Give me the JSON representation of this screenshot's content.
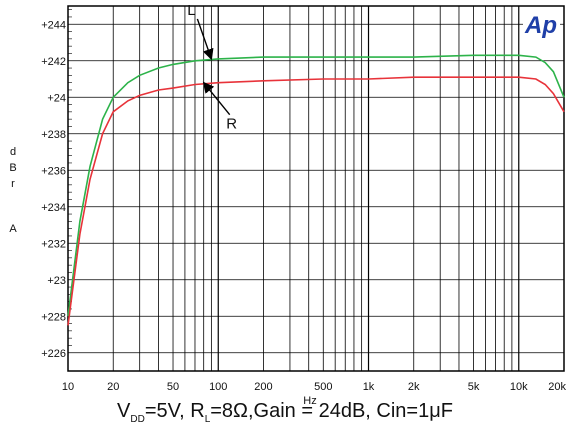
{
  "chart_data": {
    "type": "line",
    "x_scale": "log",
    "xlabel": "Hz",
    "ylabel_chars": [
      "d",
      "B",
      "r",
      "A"
    ],
    "xlim": [
      10,
      20000
    ],
    "ylim": [
      22.5,
      24.5
    ],
    "x_ticks": [
      10,
      20,
      50,
      100,
      200,
      500,
      1000,
      2000,
      5000,
      10000,
      20000
    ],
    "x_tick_labels": [
      "10",
      "20",
      "50",
      "100",
      "200",
      "500",
      "1k",
      "2k",
      "5k",
      "10k",
      "20k"
    ],
    "y_ticks": [
      22.6,
      22.8,
      23.0,
      23.2,
      23.4,
      23.6,
      23.8,
      24.0,
      24.2,
      24.4
    ],
    "y_tick_labels": [
      "+226",
      "+228",
      "+23",
      "+232",
      "+234",
      "+236",
      "+238",
      "+24",
      "+242",
      "+244"
    ],
    "grid": true,
    "logo": "Ap",
    "series": [
      {
        "name": "L",
        "color": "#2db34a",
        "x": [
          10,
          12,
          14,
          17,
          20,
          25,
          30,
          40,
          50,
          70,
          100,
          200,
          500,
          1000,
          2000,
          5000,
          10000,
          13000,
          15000,
          17000,
          20000
        ],
        "y": [
          22.8,
          23.32,
          23.62,
          23.88,
          24.0,
          24.08,
          24.12,
          24.16,
          24.18,
          24.2,
          24.21,
          24.22,
          24.22,
          24.22,
          24.22,
          24.23,
          24.23,
          24.22,
          24.19,
          24.14,
          24.0
        ]
      },
      {
        "name": "R",
        "color": "#e8333a",
        "x": [
          10,
          12,
          14,
          17,
          20,
          25,
          30,
          40,
          50,
          70,
          100,
          200,
          500,
          1000,
          2000,
          5000,
          10000,
          13000,
          15000,
          17000,
          20000
        ],
        "y": [
          22.75,
          23.25,
          23.55,
          23.8,
          23.92,
          23.98,
          24.01,
          24.04,
          24.05,
          24.07,
          24.08,
          24.09,
          24.1,
          24.1,
          24.11,
          24.11,
          24.11,
          24.1,
          24.07,
          24.02,
          23.92
        ]
      }
    ],
    "annotations": [
      {
        "text": "L",
        "target_x": 90,
        "target_y": 24.21
      },
      {
        "text": "R",
        "target_x": 80,
        "target_y": 24.08
      }
    ]
  },
  "caption": {
    "vdd_pre": "V",
    "vdd_sub": "DD",
    "vdd_post": "=5V, R",
    "rl_sub": "L",
    "rest": "=8Ω,Gain = 24dB, Cin=1μF"
  }
}
